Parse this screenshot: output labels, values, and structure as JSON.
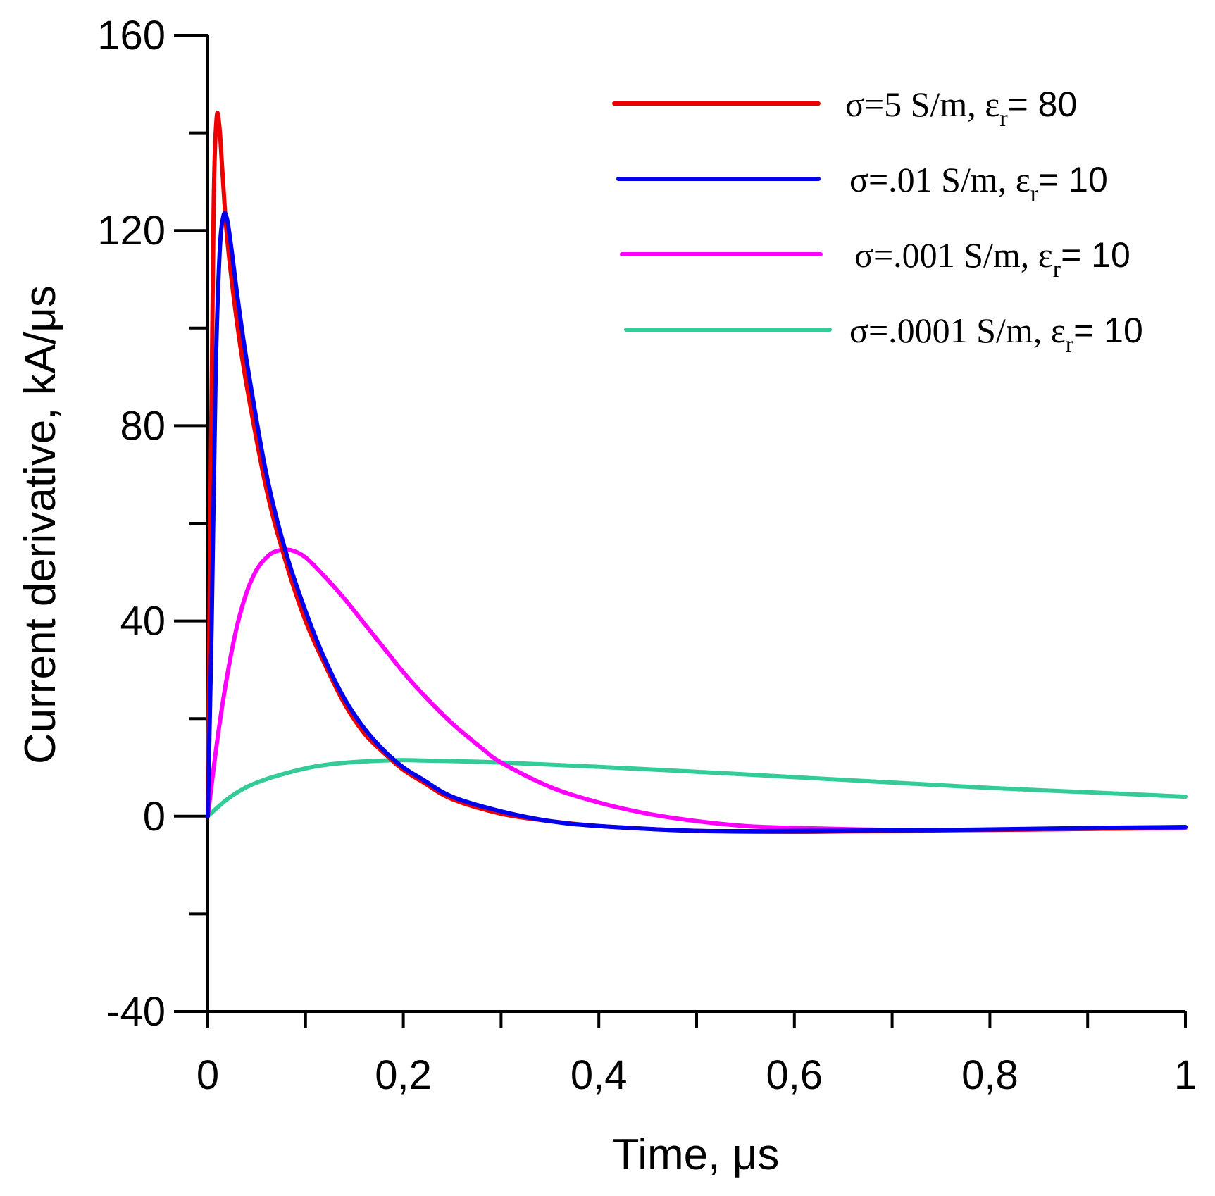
{
  "chart_data": {
    "type": "line",
    "title": "",
    "xlabel": "Time, μs",
    "ylabel": "Current derivative, kA/μs",
    "xlim": [
      0,
      1
    ],
    "ylim": [
      -40,
      160
    ],
    "x_ticks": [
      0,
      0.2,
      0.4,
      0.6,
      0.8,
      1
    ],
    "x_tick_labels": [
      "0",
      "0,2",
      "0,4",
      "0,6",
      "0,8",
      "1"
    ],
    "x_minor_ticks": [
      0.1,
      0.3,
      0.5,
      0.7,
      0.9
    ],
    "y_ticks": [
      -40,
      0,
      40,
      80,
      120,
      160
    ],
    "y_tick_labels": [
      "-40",
      "0",
      "40",
      "80",
      "120",
      "160"
    ],
    "y_minor_ticks": [
      -20,
      20,
      60,
      100,
      140
    ],
    "grid": false,
    "legend_position": "top-right",
    "series": [
      {
        "name": "σ=5 S/m, εr= 80",
        "legend": {
          "prefix": "σ=5 S/m, ε",
          "sub": "r",
          "suffix": "= 80"
        },
        "color": "#ee0000",
        "x": [
          0,
          0.003,
          0.006,
          0.009,
          0.012,
          0.015,
          0.02,
          0.03,
          0.04,
          0.06,
          0.08,
          0.1,
          0.12,
          0.14,
          0.16,
          0.18,
          0.2,
          0.22,
          0.25,
          0.3,
          0.35,
          0.4,
          0.5,
          0.6,
          0.7,
          0.8,
          0.9,
          1.0
        ],
        "values": [
          0,
          70,
          125,
          143,
          141,
          132,
          118,
          101,
          88,
          67,
          52,
          40,
          31,
          23,
          17,
          13,
          9.5,
          7,
          3.5,
          0.5,
          -1,
          -2,
          -3,
          -3.2,
          -3,
          -2.8,
          -2.6,
          -2.3
        ]
      },
      {
        "name": "σ=.01 S/m, εr= 10",
        "legend": {
          "prefix": "σ=.01 S/m, ε",
          "sub": "r",
          "suffix": "= 10"
        },
        "color": "#0000ee",
        "x": [
          0,
          0.004,
          0.008,
          0.012,
          0.016,
          0.02,
          0.025,
          0.03,
          0.04,
          0.06,
          0.08,
          0.1,
          0.12,
          0.14,
          0.16,
          0.18,
          0.2,
          0.22,
          0.25,
          0.3,
          0.35,
          0.4,
          0.5,
          0.6,
          0.7,
          0.8,
          0.9,
          1.0
        ],
        "values": [
          0,
          40,
          90,
          115,
          123,
          122,
          115,
          107,
          93,
          70,
          54,
          42,
          32,
          24,
          18,
          13.5,
          10,
          7.5,
          4,
          1,
          -1,
          -2,
          -3,
          -3,
          -2.9,
          -2.7,
          -2.4,
          -2.2
        ]
      },
      {
        "name": "σ=.001 S/m, εr= 10",
        "legend": {
          "prefix": "σ=.001 S/m, ε",
          "sub": "r",
          "suffix": "= 10"
        },
        "color": "#ff00ff",
        "x": [
          0,
          0.01,
          0.02,
          0.03,
          0.04,
          0.05,
          0.06,
          0.07,
          0.085,
          0.1,
          0.12,
          0.14,
          0.16,
          0.18,
          0.2,
          0.22,
          0.25,
          0.28,
          0.3,
          0.35,
          0.4,
          0.45,
          0.5,
          0.55,
          0.6,
          0.7,
          0.8,
          0.9,
          1.0
        ],
        "values": [
          0,
          16,
          29,
          39,
          46,
          50.5,
          53,
          54.3,
          54.5,
          53,
          49,
          44.5,
          39.5,
          34.5,
          29.5,
          25,
          19,
          14,
          11,
          6,
          2.8,
          0.5,
          -1,
          -2,
          -2.4,
          -2.8,
          -2.8,
          -2.6,
          -2.4
        ]
      },
      {
        "name": "σ=.0001 S/m, εr= 10",
        "legend": {
          "prefix": "σ=.0001 S/m, ε",
          "sub": "r",
          "suffix": "= 10"
        },
        "color": "#33cc99",
        "x": [
          0,
          0.02,
          0.04,
          0.06,
          0.08,
          0.1,
          0.12,
          0.15,
          0.18,
          0.2,
          0.22,
          0.25,
          0.3,
          0.4,
          0.5,
          0.6,
          0.7,
          0.8,
          0.9,
          1.0
        ],
        "values": [
          0,
          3.5,
          6,
          7.6,
          8.8,
          9.8,
          10.5,
          11.1,
          11.4,
          11.5,
          11.4,
          11.3,
          11,
          10.1,
          9.1,
          8,
          6.9,
          5.8,
          4.9,
          4
        ]
      }
    ]
  }
}
